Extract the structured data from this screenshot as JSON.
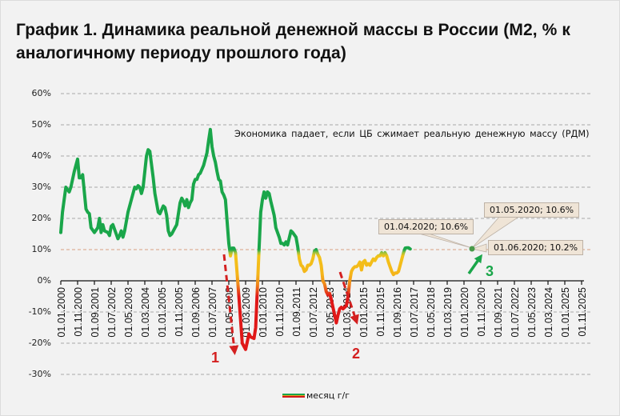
{
  "title": "График 1. Динамика реальной денежной массы в России (М2, % к аналогичному  периоду прошлого года)",
  "note": "Экономика падает, если ЦБ сжимает реальную денежную массу (РДМ)",
  "legend": {
    "label": "месяц г/г"
  },
  "callouts": [
    {
      "text": "01.04.2020; 10.6%"
    },
    {
      "text": "01.05.2020; 10.6%"
    },
    {
      "text": "01.06.2020; 10.2%"
    }
  ],
  "annotations": [
    {
      "label": "1",
      "color": "#d42020"
    },
    {
      "label": "2",
      "color": "#d42020"
    },
    {
      "label": "3",
      "color": "#1aa64a"
    }
  ],
  "colors": {
    "green": "#1aa64a",
    "yellow": "#f2c31a",
    "orange": "#f08a1a",
    "red": "#e01818",
    "background": "#f2f2f2"
  },
  "chart_data": {
    "type": "line",
    "title": "График 1. Динамика реальной денежной массы в России (М2, % к аналогичному  периоду прошлого года)",
    "xlabel": "",
    "ylabel": "",
    "ylim": [
      -30,
      60
    ],
    "yticks": [
      "60%",
      "50%",
      "40%",
      "30%",
      "20%",
      "10%",
      "0%",
      "-10%",
      "-20%",
      "-30%"
    ],
    "grid": true,
    "legend_position": "bottom",
    "x_tick_labels": [
      "01.01.2000",
      "01.11.2000",
      "01.09.2001",
      "01.07.2002",
      "01.05.2003",
      "01.03.2004",
      "01.01.2005",
      "01.11.2005",
      "01.09.2006",
      "01.07.2007",
      "01.05.2008",
      "01.03.2009",
      "01.01.2010",
      "01.11.2010",
      "01.09.2011",
      "01.07.2012",
      "01.05.2013",
      "01.03.2014",
      "01.01.2015",
      "01.11.2015",
      "01.09.2016",
      "01.07.2017",
      "01.05.2018",
      "01.03.2019",
      "01.01.2020",
      "01.11.2020",
      "01.09.2021",
      "01.07.2022",
      "01.05.2023",
      "01.03.2024",
      "01.01.2025",
      "01.11.2025"
    ],
    "series": [
      {
        "name": "месяц г/г",
        "x_unit": "months since 01.01.2000",
        "points": [
          [
            0,
            15.5
          ],
          [
            1,
            22
          ],
          [
            3,
            30
          ],
          [
            5,
            28.5
          ],
          [
            6,
            30
          ],
          [
            8,
            35
          ],
          [
            9,
            37
          ],
          [
            10,
            39
          ],
          [
            11,
            33
          ],
          [
            12,
            33
          ],
          [
            13,
            34
          ],
          [
            15,
            23
          ],
          [
            16,
            22
          ],
          [
            17,
            21.5
          ],
          [
            18,
            17
          ],
          [
            20,
            15.5
          ],
          [
            22,
            17
          ],
          [
            23,
            20
          ],
          [
            24,
            15.5
          ],
          [
            25,
            18
          ],
          [
            26,
            16
          ],
          [
            28,
            15.5
          ],
          [
            29,
            14.5
          ],
          [
            30,
            17.5
          ],
          [
            31,
            18
          ],
          [
            33,
            15
          ],
          [
            34,
            13.5
          ],
          [
            35,
            14.5
          ],
          [
            36,
            16
          ],
          [
            37,
            14
          ],
          [
            38,
            16
          ],
          [
            40,
            22
          ],
          [
            42,
            26
          ],
          [
            44,
            30
          ],
          [
            45,
            29.5
          ],
          [
            46,
            30.5
          ],
          [
            47,
            30
          ],
          [
            48,
            28
          ],
          [
            49,
            30
          ],
          [
            51,
            40
          ],
          [
            52,
            42
          ],
          [
            53,
            41.5
          ],
          [
            55,
            33
          ],
          [
            56,
            28
          ],
          [
            58,
            22
          ],
          [
            59,
            21.5
          ],
          [
            61,
            24
          ],
          [
            62,
            23.5
          ],
          [
            63,
            21
          ],
          [
            64,
            16
          ],
          [
            65,
            14.5
          ],
          [
            66,
            15
          ],
          [
            68,
            17
          ],
          [
            69,
            18
          ],
          [
            71,
            25
          ],
          [
            72,
            26.5
          ],
          [
            73,
            25.5
          ],
          [
            74,
            24
          ],
          [
            75,
            26
          ],
          [
            76,
            23.5
          ],
          [
            77,
            25
          ],
          [
            78,
            26
          ],
          [
            79,
            31
          ],
          [
            80,
            32.5
          ],
          [
            81,
            32.5
          ],
          [
            82,
            34
          ],
          [
            83,
            34.5
          ],
          [
            85,
            37
          ],
          [
            86,
            39
          ],
          [
            87,
            41
          ],
          [
            88,
            45
          ],
          [
            89,
            48.5
          ],
          [
            90,
            43
          ],
          [
            91,
            40
          ],
          [
            92,
            38
          ],
          [
            93,
            35
          ],
          [
            94,
            32.5
          ],
          [
            95,
            32
          ],
          [
            96,
            28.5
          ],
          [
            97,
            27.5
          ],
          [
            98,
            26
          ],
          [
            100,
            12
          ],
          [
            101,
            8
          ],
          [
            102,
            10.5
          ],
          [
            103,
            10.5
          ],
          [
            104,
            9
          ],
          [
            106,
            -5
          ],
          [
            108,
            -20
          ],
          [
            110,
            -22
          ],
          [
            112,
            -17
          ],
          [
            113,
            -18
          ],
          [
            115,
            -18.5
          ],
          [
            116,
            -15
          ],
          [
            118,
            10
          ],
          [
            119,
            22
          ],
          [
            120,
            26
          ],
          [
            121,
            28.5
          ],
          [
            122,
            26.5
          ],
          [
            123,
            28.5
          ],
          [
            124,
            28
          ],
          [
            125,
            25.5
          ],
          [
            127,
            21
          ],
          [
            128,
            17
          ],
          [
            130,
            14
          ],
          [
            131,
            12
          ],
          [
            132,
            12
          ],
          [
            133,
            11.5
          ],
          [
            134,
            12.5
          ],
          [
            135,
            11.5
          ],
          [
            137,
            16
          ],
          [
            138,
            15.5
          ],
          [
            140,
            14
          ],
          [
            141,
            11
          ],
          [
            142,
            7
          ],
          [
            143,
            5
          ],
          [
            144,
            4.5
          ],
          [
            145,
            3
          ],
          [
            146,
            3.5
          ],
          [
            147,
            5
          ],
          [
            148,
            5
          ],
          [
            149,
            5.5
          ],
          [
            150,
            7
          ],
          [
            151,
            9.5
          ],
          [
            152,
            10
          ],
          [
            153,
            8.5
          ],
          [
            154,
            7.5
          ],
          [
            155,
            5
          ],
          [
            156,
            0
          ],
          [
            157,
            -1
          ],
          [
            158,
            -3.5
          ],
          [
            159,
            -4.5
          ],
          [
            160,
            -4
          ],
          [
            161,
            -6
          ],
          [
            163,
            -11
          ],
          [
            164,
            -13.5
          ],
          [
            165,
            -11
          ],
          [
            166,
            -9
          ],
          [
            167,
            -8.5
          ],
          [
            168,
            -9
          ],
          [
            169,
            -8.5
          ],
          [
            170,
            -8
          ],
          [
            171,
            -5
          ],
          [
            172,
            0
          ],
          [
            173,
            3
          ],
          [
            174,
            4
          ],
          [
            175,
            4.5
          ],
          [
            176,
            4.5
          ],
          [
            177,
            5
          ],
          [
            178,
            6
          ],
          [
            179,
            3.5
          ],
          [
            180,
            6
          ],
          [
            181,
            6.5
          ],
          [
            182,
            5
          ],
          [
            183,
            5.5
          ],
          [
            184,
            5
          ],
          [
            185,
            6
          ],
          [
            186,
            7
          ],
          [
            187,
            6.5
          ],
          [
            188,
            7.5
          ],
          [
            189,
            8
          ],
          [
            190,
            8
          ],
          [
            191,
            9
          ],
          [
            192,
            8
          ],
          [
            193,
            9
          ],
          [
            194,
            8
          ],
          [
            195,
            6
          ],
          [
            196,
            4.5
          ],
          [
            197,
            3
          ],
          [
            198,
            2
          ],
          [
            199,
            2.5
          ],
          [
            200,
            2.5
          ],
          [
            201,
            3
          ],
          [
            202,
            5
          ],
          [
            203,
            7
          ],
          [
            204,
            9
          ],
          [
            205,
            10.5
          ],
          [
            206,
            10.6
          ],
          [
            207,
            10.6
          ],
          [
            208,
            10.2
          ]
        ]
      }
    ],
    "data_labels": [
      {
        "date": "01.04.2020",
        "value": 10.6
      },
      {
        "date": "01.05.2020",
        "value": 10.6
      },
      {
        "date": "01.06.2020",
        "value": 10.2
      }
    ],
    "reference_line": {
      "value": 10.2,
      "style": "dashed",
      "color": "#d8a080"
    },
    "annotations_text": [
      "Экономика падает, если ЦБ сжимает реальную денежную массу (РДМ)",
      "1",
      "2",
      "3"
    ]
  }
}
